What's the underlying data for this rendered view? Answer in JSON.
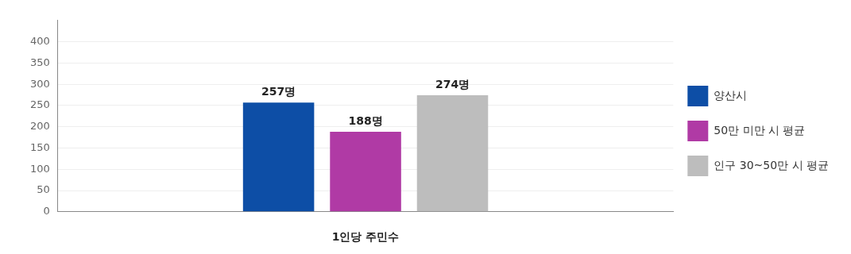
{
  "chart_data": {
    "type": "bar",
    "xlabel": "1인당 주민수",
    "categories": [
      null
    ],
    "series": [
      {
        "name": "양산시",
        "color": "#0d4ea6",
        "values": [
          257
        ],
        "value_labels": [
          "257명"
        ]
      },
      {
        "name": "50만 미만 시 평균",
        "color": "#b03aa5",
        "values": [
          188
        ],
        "value_labels": [
          "188명"
        ]
      },
      {
        "name": "인구 30~50만 시 평균",
        "color": "#bdbdbd",
        "values": [
          274
        ],
        "value_labels": [
          "274명"
        ]
      }
    ],
    "ylim": [
      0,
      450
    ],
    "yticks": [
      0,
      50,
      100,
      150,
      200,
      250,
      300,
      350,
      400
    ],
    "grid": "y",
    "legend": "right"
  }
}
